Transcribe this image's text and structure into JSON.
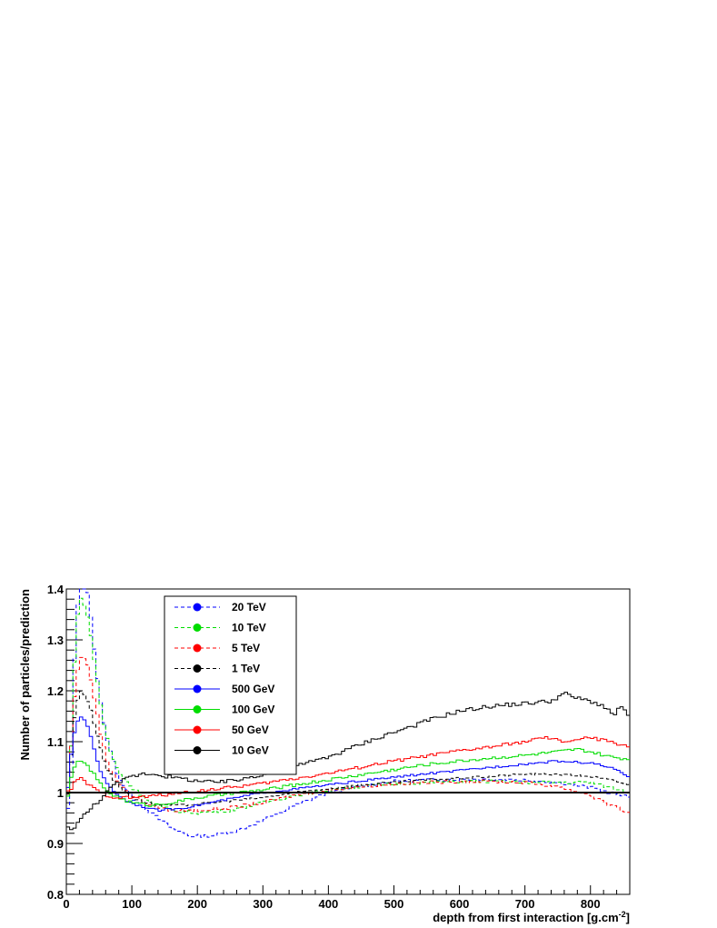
{
  "chart_data": {
    "type": "line",
    "step": true,
    "xlabel": "depth from first interaction [g.cm",
    "xlabel_sup": "-2",
    "xlabel_end": "]",
    "ylabel": "Number of particles/prediction",
    "xlim": [
      0,
      860
    ],
    "ylim": [
      0.8,
      1.4
    ],
    "xticks": [
      0,
      100,
      200,
      300,
      400,
      500,
      600,
      700,
      800
    ],
    "xtick_labels": [
      "0",
      "100",
      "200",
      "300",
      "400",
      "500",
      "600",
      "700",
      "800"
    ],
    "yticks": [
      0.8,
      0.9,
      1.0,
      1.1,
      1.2,
      1.3,
      1.4
    ],
    "ytick_labels": [
      "0.8",
      "0.9",
      "1",
      "1.1",
      "1.2",
      "1.3",
      "1.4"
    ],
    "reference_line": 1.0,
    "legend_position": "top-left",
    "series": [
      {
        "name": "20 TeV",
        "color": "#0000ff",
        "dashed": true,
        "noise": 0.003,
        "points": [
          [
            0,
            0.93
          ],
          [
            8,
            1.05
          ],
          [
            12,
            1.25
          ],
          [
            18,
            1.38
          ],
          [
            22,
            1.42
          ],
          [
            28,
            1.42
          ],
          [
            35,
            1.38
          ],
          [
            45,
            1.25
          ],
          [
            55,
            1.15
          ],
          [
            65,
            1.09
          ],
          [
            80,
            1.03
          ],
          [
            100,
            0.99
          ],
          [
            130,
            0.96
          ],
          [
            160,
            0.93
          ],
          [
            190,
            0.915
          ],
          [
            220,
            0.915
          ],
          [
            260,
            0.925
          ],
          [
            300,
            0.945
          ],
          [
            350,
            0.975
          ],
          [
            400,
            1.0
          ],
          [
            450,
            1.012
          ],
          [
            500,
            1.022
          ],
          [
            550,
            1.025
          ],
          [
            600,
            1.026
          ],
          [
            650,
            1.026
          ],
          [
            700,
            1.025
          ],
          [
            750,
            1.02
          ],
          [
            800,
            1.01
          ],
          [
            830,
            1.0
          ],
          [
            860,
            0.99
          ]
        ]
      },
      {
        "name": "10 TeV",
        "color": "#00dd00",
        "dashed": true,
        "noise": 0.003,
        "points": [
          [
            0,
            0.95
          ],
          [
            8,
            1.1
          ],
          [
            12,
            1.25
          ],
          [
            18,
            1.36
          ],
          [
            22,
            1.38
          ],
          [
            28,
            1.37
          ],
          [
            35,
            1.33
          ],
          [
            45,
            1.24
          ],
          [
            55,
            1.15
          ],
          [
            65,
            1.09
          ],
          [
            80,
            1.04
          ],
          [
            100,
            1.01
          ],
          [
            130,
            0.98
          ],
          [
            160,
            0.965
          ],
          [
            200,
            0.96
          ],
          [
            250,
            0.965
          ],
          [
            300,
            0.98
          ],
          [
            350,
            0.995
          ],
          [
            400,
            1.005
          ],
          [
            450,
            1.012
          ],
          [
            500,
            1.017
          ],
          [
            550,
            1.02
          ],
          [
            600,
            1.022
          ],
          [
            650,
            1.022
          ],
          [
            700,
            1.02
          ],
          [
            750,
            1.02
          ],
          [
            800,
            1.02
          ],
          [
            830,
            1.01
          ],
          [
            860,
            1.0
          ]
        ]
      },
      {
        "name": "5 TeV",
        "color": "#ff0000",
        "dashed": true,
        "noise": 0.003,
        "points": [
          [
            0,
            0.96
          ],
          [
            8,
            1.1
          ],
          [
            14,
            1.22
          ],
          [
            20,
            1.26
          ],
          [
            26,
            1.27
          ],
          [
            35,
            1.24
          ],
          [
            45,
            1.17
          ],
          [
            55,
            1.1
          ],
          [
            65,
            1.05
          ],
          [
            80,
            1.02
          ],
          [
            100,
            0.995
          ],
          [
            130,
            0.975
          ],
          [
            160,
            0.965
          ],
          [
            200,
            0.965
          ],
          [
            250,
            0.97
          ],
          [
            300,
            0.98
          ],
          [
            350,
            0.995
          ],
          [
            400,
            1.005
          ],
          [
            450,
            1.012
          ],
          [
            500,
            1.017
          ],
          [
            550,
            1.02
          ],
          [
            600,
            1.022
          ],
          [
            650,
            1.022
          ],
          [
            700,
            1.02
          ],
          [
            750,
            1.012
          ],
          [
            800,
            0.995
          ],
          [
            830,
            0.975
          ],
          [
            860,
            0.96
          ]
        ]
      },
      {
        "name": "1 TeV",
        "color": "#000000",
        "dashed": true,
        "noise": 0.002,
        "points": [
          [
            0,
            0.96
          ],
          [
            8,
            1.08
          ],
          [
            14,
            1.17
          ],
          [
            22,
            1.2
          ],
          [
            30,
            1.19
          ],
          [
            40,
            1.15
          ],
          [
            50,
            1.1
          ],
          [
            60,
            1.05
          ],
          [
            75,
            1.02
          ],
          [
            90,
            1.0
          ],
          [
            110,
            0.985
          ],
          [
            140,
            0.975
          ],
          [
            180,
            0.975
          ],
          [
            220,
            0.98
          ],
          [
            260,
            0.985
          ],
          [
            300,
            0.99
          ],
          [
            350,
            1.0
          ],
          [
            400,
            1.008
          ],
          [
            450,
            1.015
          ],
          [
            500,
            1.02
          ],
          [
            550,
            1.025
          ],
          [
            600,
            1.028
          ],
          [
            650,
            1.032
          ],
          [
            700,
            1.036
          ],
          [
            750,
            1.036
          ],
          [
            800,
            1.032
          ],
          [
            830,
            1.025
          ],
          [
            860,
            1.015
          ]
        ]
      },
      {
        "name": "500 GeV",
        "color": "#0000ff",
        "dashed": false,
        "noise": 0.002,
        "points": [
          [
            0,
            0.98
          ],
          [
            8,
            1.08
          ],
          [
            14,
            1.13
          ],
          [
            22,
            1.15
          ],
          [
            30,
            1.14
          ],
          [
            40,
            1.1
          ],
          [
            50,
            1.05
          ],
          [
            60,
            1.02
          ],
          [
            75,
            1.0
          ],
          [
            90,
            0.985
          ],
          [
            110,
            0.975
          ],
          [
            140,
            0.965
          ],
          [
            180,
            0.97
          ],
          [
            220,
            0.98
          ],
          [
            260,
            0.99
          ],
          [
            300,
            1.0
          ],
          [
            350,
            1.007
          ],
          [
            400,
            1.015
          ],
          [
            450,
            1.023
          ],
          [
            500,
            1.03
          ],
          [
            550,
            1.037
          ],
          [
            600,
            1.043
          ],
          [
            650,
            1.05
          ],
          [
            700,
            1.056
          ],
          [
            750,
            1.062
          ],
          [
            800,
            1.058
          ],
          [
            830,
            1.05
          ],
          [
            860,
            1.03
          ]
        ]
      },
      {
        "name": "100 GeV",
        "color": "#00dd00",
        "dashed": false,
        "noise": 0.003,
        "points": [
          [
            0,
            0.98
          ],
          [
            8,
            1.03
          ],
          [
            14,
            1.055
          ],
          [
            22,
            1.065
          ],
          [
            30,
            1.055
          ],
          [
            40,
            1.04
          ],
          [
            50,
            1.02
          ],
          [
            65,
            1.0
          ],
          [
            80,
            0.99
          ],
          [
            100,
            0.98
          ],
          [
            130,
            0.975
          ],
          [
            160,
            0.98
          ],
          [
            200,
            0.99
          ],
          [
            250,
            0.998
          ],
          [
            300,
            1.005
          ],
          [
            350,
            1.015
          ],
          [
            400,
            1.025
          ],
          [
            450,
            1.035
          ],
          [
            500,
            1.045
          ],
          [
            550,
            1.055
          ],
          [
            600,
            1.062
          ],
          [
            650,
            1.068
          ],
          [
            700,
            1.073
          ],
          [
            750,
            1.08
          ],
          [
            780,
            1.085
          ],
          [
            800,
            1.08
          ],
          [
            830,
            1.07
          ],
          [
            860,
            1.065
          ]
        ]
      },
      {
        "name": "50 GeV",
        "color": "#ff0000",
        "dashed": false,
        "noise": 0.003,
        "points": [
          [
            0,
            0.99
          ],
          [
            8,
            1.01
          ],
          [
            14,
            1.022
          ],
          [
            22,
            1.028
          ],
          [
            30,
            1.02
          ],
          [
            45,
            1.005
          ],
          [
            60,
            0.995
          ],
          [
            80,
            0.99
          ],
          [
            100,
            0.99
          ],
          [
            130,
            0.993
          ],
          [
            160,
            0.997
          ],
          [
            200,
            1.003
          ],
          [
            250,
            1.01
          ],
          [
            300,
            1.018
          ],
          [
            350,
            1.028
          ],
          [
            400,
            1.038
          ],
          [
            450,
            1.05
          ],
          [
            500,
            1.062
          ],
          [
            550,
            1.072
          ],
          [
            600,
            1.082
          ],
          [
            650,
            1.09
          ],
          [
            700,
            1.1
          ],
          [
            730,
            1.108
          ],
          [
            760,
            1.1
          ],
          [
            800,
            1.108
          ],
          [
            830,
            1.1
          ],
          [
            860,
            1.09
          ]
        ]
      },
      {
        "name": "10 GeV",
        "color": "#000000",
        "dashed": false,
        "noise": 0.004,
        "points": [
          [
            0,
            0.93
          ],
          [
            10,
            0.93
          ],
          [
            20,
            0.945
          ],
          [
            35,
            0.965
          ],
          [
            50,
            0.985
          ],
          [
            65,
            1.005
          ],
          [
            80,
            1.02
          ],
          [
            100,
            1.032
          ],
          [
            120,
            1.038
          ],
          [
            140,
            1.036
          ],
          [
            160,
            1.03
          ],
          [
            190,
            1.025
          ],
          [
            220,
            1.02
          ],
          [
            250,
            1.022
          ],
          [
            280,
            1.03
          ],
          [
            320,
            1.043
          ],
          [
            360,
            1.055
          ],
          [
            400,
            1.07
          ],
          [
            440,
            1.09
          ],
          [
            480,
            1.11
          ],
          [
            520,
            1.127
          ],
          [
            560,
            1.145
          ],
          [
            600,
            1.16
          ],
          [
            650,
            1.17
          ],
          [
            700,
            1.175
          ],
          [
            740,
            1.18
          ],
          [
            760,
            1.195
          ],
          [
            780,
            1.185
          ],
          [
            800,
            1.18
          ],
          [
            820,
            1.17
          ],
          [
            835,
            1.15
          ],
          [
            845,
            1.17
          ],
          [
            860,
            1.15
          ]
        ]
      }
    ]
  }
}
